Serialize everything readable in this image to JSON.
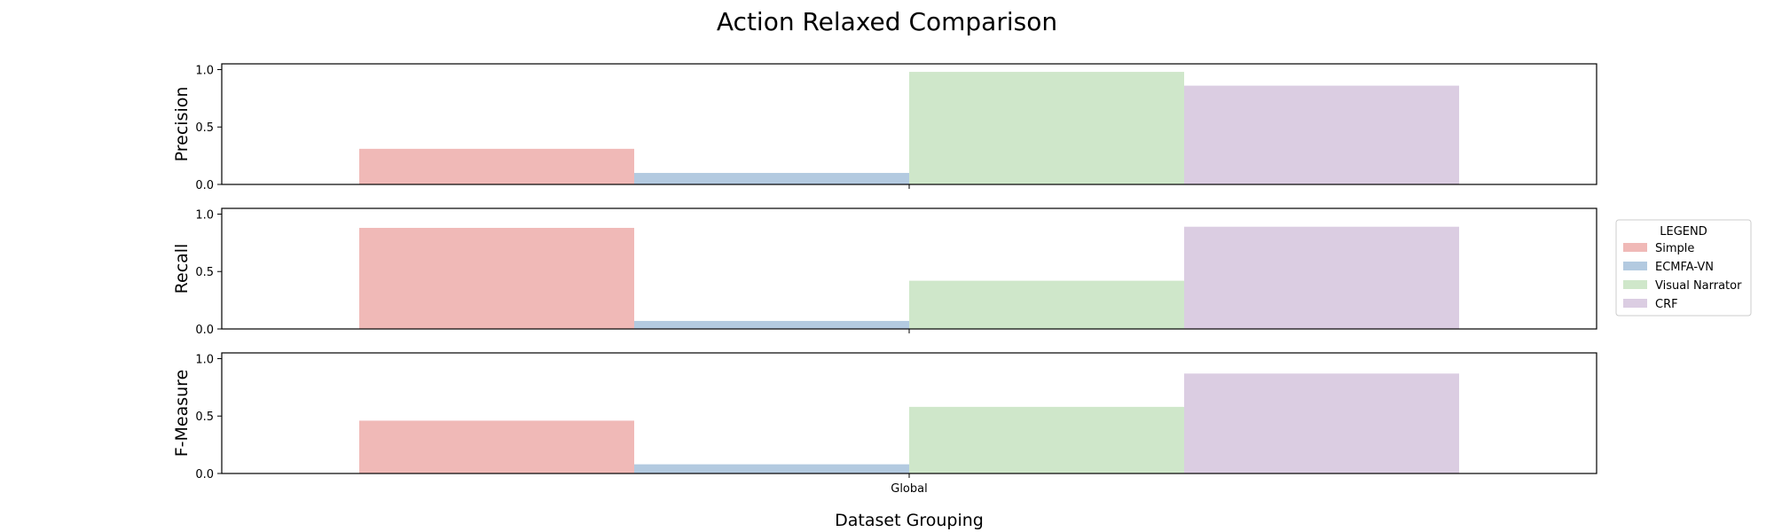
{
  "chart_data": {
    "type": "bar",
    "title": "Action Relaxed Comparison",
    "xlabel": "Dataset Grouping",
    "categories": [
      "Global"
    ],
    "legend": {
      "title": "LEGEND",
      "placement": "right"
    },
    "series": [
      {
        "name": "Simple",
        "color": "#f0b9b7"
      },
      {
        "name": "ECMFA-VN",
        "color": "#b3cae0"
      },
      {
        "name": "Visual Narrator",
        "color": "#cfe7ca"
      },
      {
        "name": "CRF",
        "color": "#dbcde2"
      }
    ],
    "panels": [
      {
        "ylabel": "Precision",
        "ylim": [
          0,
          1.05
        ],
        "yticks": [
          "0.0",
          "0.5",
          "1.0"
        ],
        "values": [
          0.31,
          0.1,
          0.98,
          0.86
        ]
      },
      {
        "ylabel": "Recall",
        "ylim": [
          0,
          1.05
        ],
        "yticks": [
          "0.0",
          "0.5",
          "1.0"
        ],
        "values": [
          0.88,
          0.07,
          0.42,
          0.89
        ]
      },
      {
        "ylabel": "F-Measure",
        "ylim": [
          0,
          1.05
        ],
        "yticks": [
          "0.0",
          "0.5",
          "1.0"
        ],
        "values": [
          0.46,
          0.08,
          0.58,
          0.87
        ]
      }
    ],
    "grid": false
  }
}
